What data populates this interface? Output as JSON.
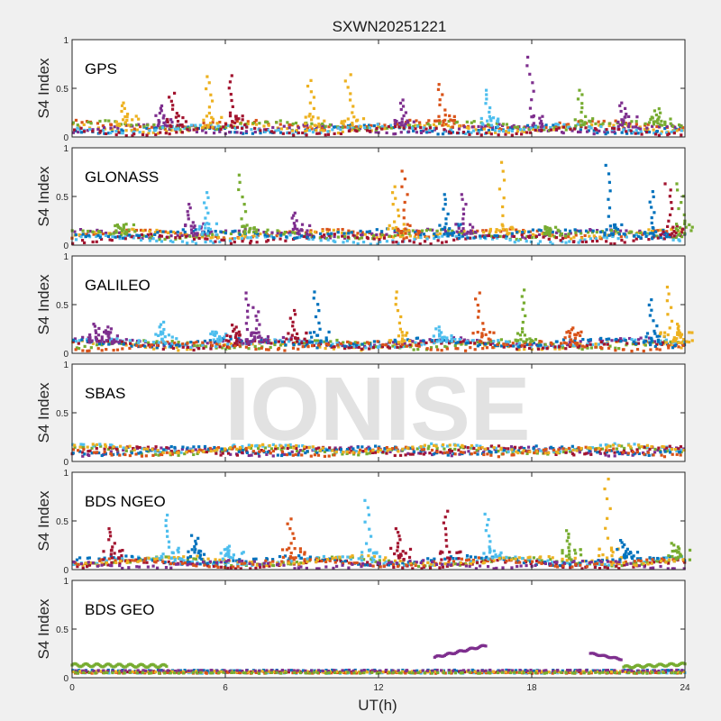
{
  "chart_data": {
    "type": "scatter",
    "title": "SXWN20251221",
    "xlabel": "UT(h)",
    "ylabel": "S4 Index",
    "xlim": [
      0,
      24
    ],
    "ylim": [
      0,
      1
    ],
    "xticks": [
      0,
      6,
      12,
      18,
      24
    ],
    "xtick_labels": [
      "0",
      "6",
      "12",
      "18",
      "24"
    ],
    "yticks": [
      0,
      0.5,
      1
    ],
    "ytick_labels": [
      "0",
      "0.5",
      "1"
    ],
    "grid": false,
    "legend": "none",
    "watermark": "IONISE",
    "color_order": [
      "#0072BD",
      "#D95319",
      "#EDB120",
      "#7E2F8E",
      "#77AC30",
      "#4DBEEE",
      "#A2142F"
    ],
    "panels": [
      {
        "label": "GPS",
        "baseline": [
          0.03,
          0.15
        ],
        "peaks": [
          {
            "x": 2.0,
            "y": 0.35,
            "color": 2
          },
          {
            "x": 3.4,
            "y": 0.32,
            "color": 3
          },
          {
            "x": 3.9,
            "y": 0.45,
            "color": 6
          },
          {
            "x": 5.3,
            "y": 0.62,
            "color": 2
          },
          {
            "x": 6.2,
            "y": 0.63,
            "color": 6
          },
          {
            "x": 9.3,
            "y": 0.58,
            "color": 2
          },
          {
            "x": 10.8,
            "y": 0.64,
            "color": 2
          },
          {
            "x": 12.9,
            "y": 0.38,
            "color": 3
          },
          {
            "x": 14.4,
            "y": 0.54,
            "color": 1
          },
          {
            "x": 16.2,
            "y": 0.48,
            "color": 5
          },
          {
            "x": 17.9,
            "y": 0.82,
            "color": 3
          },
          {
            "x": 19.9,
            "y": 0.48,
            "color": 4
          },
          {
            "x": 21.5,
            "y": 0.35,
            "color": 3
          },
          {
            "x": 22.9,
            "y": 0.29,
            "color": 4
          }
        ]
      },
      {
        "label": "GLONASS",
        "baseline": [
          0.03,
          0.14
        ],
        "peaks": [
          {
            "x": 1.9,
            "y": 0.19,
            "color": 4
          },
          {
            "x": 4.6,
            "y": 0.42,
            "color": 3
          },
          {
            "x": 5.2,
            "y": 0.54,
            "color": 5
          },
          {
            "x": 6.6,
            "y": 0.72,
            "color": 4
          },
          {
            "x": 8.7,
            "y": 0.33,
            "color": 3
          },
          {
            "x": 12.6,
            "y": 0.6,
            "color": 2
          },
          {
            "x": 13.0,
            "y": 0.76,
            "color": 1
          },
          {
            "x": 14.6,
            "y": 0.52,
            "color": 0
          },
          {
            "x": 15.3,
            "y": 0.52,
            "color": 3
          },
          {
            "x": 16.8,
            "y": 0.85,
            "color": 2
          },
          {
            "x": 18.6,
            "y": 0.18,
            "color": 4
          },
          {
            "x": 21.0,
            "y": 0.82,
            "color": 0
          },
          {
            "x": 22.7,
            "y": 0.55,
            "color": 0
          },
          {
            "x": 23.3,
            "y": 0.63,
            "color": 6
          },
          {
            "x": 23.8,
            "y": 0.63,
            "color": 4
          }
        ]
      },
      {
        "label": "GALILEO",
        "baseline": [
          0.04,
          0.14
        ],
        "peaks": [
          {
            "x": 0.9,
            "y": 0.3,
            "color": 3
          },
          {
            "x": 1.4,
            "y": 0.27,
            "color": 3
          },
          {
            "x": 3.5,
            "y": 0.32,
            "color": 5
          },
          {
            "x": 5.6,
            "y": 0.22,
            "color": 5
          },
          {
            "x": 6.3,
            "y": 0.29,
            "color": 6
          },
          {
            "x": 6.8,
            "y": 0.62,
            "color": 3
          },
          {
            "x": 7.2,
            "y": 0.47,
            "color": 3
          },
          {
            "x": 8.6,
            "y": 0.44,
            "color": 6
          },
          {
            "x": 9.5,
            "y": 0.63,
            "color": 0
          },
          {
            "x": 12.7,
            "y": 0.63,
            "color": 2
          },
          {
            "x": 14.3,
            "y": 0.27,
            "color": 5
          },
          {
            "x": 15.9,
            "y": 0.62,
            "color": 1
          },
          {
            "x": 17.6,
            "y": 0.65,
            "color": 4
          },
          {
            "x": 19.5,
            "y": 0.26,
            "color": 1
          },
          {
            "x": 22.7,
            "y": 0.55,
            "color": 0
          },
          {
            "x": 23.3,
            "y": 0.68,
            "color": 2
          },
          {
            "x": 23.8,
            "y": 0.3,
            "color": 2
          }
        ]
      },
      {
        "label": "SBAS",
        "baseline": [
          0.06,
          0.18
        ],
        "peaks": []
      },
      {
        "label": "BDS NGEO",
        "baseline": [
          0.02,
          0.12
        ],
        "peaks": [
          {
            "x": 1.5,
            "y": 0.42,
            "color": 6
          },
          {
            "x": 3.7,
            "y": 0.56,
            "color": 5
          },
          {
            "x": 4.8,
            "y": 0.35,
            "color": 0
          },
          {
            "x": 6.1,
            "y": 0.24,
            "color": 5
          },
          {
            "x": 8.5,
            "y": 0.52,
            "color": 1
          },
          {
            "x": 11.5,
            "y": 0.71,
            "color": 5
          },
          {
            "x": 12.7,
            "y": 0.42,
            "color": 6
          },
          {
            "x": 14.6,
            "y": 0.6,
            "color": 6
          },
          {
            "x": 16.2,
            "y": 0.57,
            "color": 5
          },
          {
            "x": 19.4,
            "y": 0.4,
            "color": 4
          },
          {
            "x": 20.9,
            "y": 0.93,
            "color": 2
          },
          {
            "x": 21.6,
            "y": 0.3,
            "color": 0
          },
          {
            "x": 23.6,
            "y": 0.27,
            "color": 4
          }
        ]
      },
      {
        "label": "BDS GEO",
        "baseline": [
          0.05,
          0.09
        ],
        "tracks": [
          {
            "x0": 0.0,
            "x1": 3.7,
            "y0": 0.13,
            "y1": 0.12,
            "color": 4,
            "wobble": 0.025
          },
          {
            "x0": 14.2,
            "x1": 16.2,
            "y0": 0.21,
            "y1": 0.33,
            "color": 3,
            "wobble": 0.015
          },
          {
            "x0": 20.3,
            "x1": 21.5,
            "y0": 0.25,
            "y1": 0.19,
            "color": 3,
            "wobble": 0.01
          },
          {
            "x0": 21.6,
            "x1": 24.0,
            "y0": 0.11,
            "y1": 0.14,
            "color": 4,
            "wobble": 0.02
          }
        ],
        "peaks": []
      }
    ]
  }
}
